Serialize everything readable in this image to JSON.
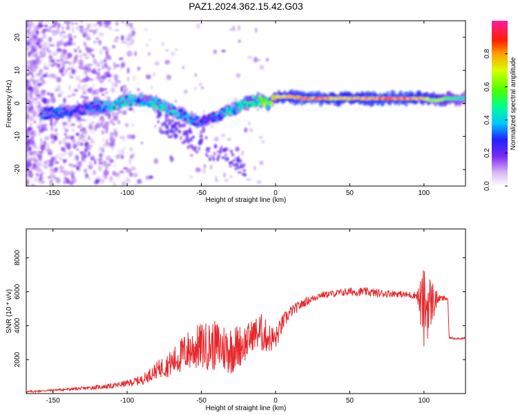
{
  "title": "PAZ1.2024.362.15.42.G03",
  "chart_data": [
    {
      "type": "heatmap",
      "xlabel": "Height of straight line (km)",
      "ylabel": "Frequency (Hz)",
      "xlim": [
        -168,
        128
      ],
      "ylim": [
        -25,
        25
      ],
      "xticks": [
        -150,
        -100,
        -50,
        0,
        50,
        100
      ],
      "yticks": [
        -20,
        -10,
        0,
        10,
        20
      ],
      "colorbar": {
        "label": "Normalized spectral amplitude",
        "range": [
          0,
          1
        ],
        "ticks": [
          "0.0",
          "0.2",
          "0.4",
          "0.6",
          "0.8"
        ],
        "colormap": "gist_ncar_r (white-purple-blue-cyan-green-yellow-red-magenta)"
      },
      "ridge": {
        "description": "main spectral ridge frequency vs height",
        "x": [
          -155,
          -130,
          -120,
          -110,
          -100,
          -90,
          -80,
          -70,
          -60,
          -50,
          -45,
          -40,
          -35,
          -30,
          -25,
          -20,
          -15,
          -10,
          -5,
          0,
          10,
          20,
          30,
          40,
          50,
          60,
          70,
          80,
          90,
          100,
          105,
          110,
          115,
          120,
          125
        ],
        "y": [
          -3,
          -2,
          -1,
          -1,
          1,
          1,
          0,
          -2,
          -4,
          -6,
          -5,
          -4,
          -3,
          -2,
          -1,
          0,
          1,
          1,
          0,
          2,
          2,
          1.5,
          1.5,
          1.5,
          1.5,
          1.5,
          1.5,
          1.5,
          1.5,
          1.5,
          1,
          1,
          1.5,
          1.5,
          1.5
        ],
        "amplitude": [
          0.35,
          0.3,
          0.35,
          0.45,
          0.45,
          0.4,
          0.5,
          0.45,
          0.4,
          0.35,
          0.3,
          0.35,
          0.4,
          0.45,
          0.45,
          0.5,
          0.55,
          0.6,
          0.7,
          0.75,
          0.8,
          0.85,
          0.85,
          0.8,
          0.8,
          0.8,
          0.85,
          0.85,
          0.85,
          0.8,
          0.7,
          0.7,
          0.6,
          0.5,
          0.45
        ]
      }
    },
    {
      "type": "line",
      "xlabel": "Height of straight line (km)",
      "ylabel": "SNR (10 * v/v)",
      "xlim": [
        -168,
        128
      ],
      "ylim": [
        0,
        9700
      ],
      "xticks": [
        -150,
        -100,
        -50,
        0,
        50,
        100
      ],
      "yticks": [
        2000,
        4000,
        6000,
        8000
      ],
      "series": [
        {
          "color": "#e8262a",
          "x": [
            -168,
            -150,
            -130,
            -110,
            -100,
            -90,
            -80,
            -70,
            -60,
            -50,
            -40,
            -30,
            -20,
            -15,
            -10,
            -5,
            0,
            5,
            10,
            20,
            30,
            40,
            50,
            60,
            70,
            80,
            90,
            95,
            100,
            105,
            110,
            115,
            116,
            117,
            120,
            128
          ],
          "y": [
            100,
            200,
            300,
            450,
            600,
            800,
            1400,
            1800,
            2500,
            2800,
            2800,
            2600,
            3000,
            3500,
            3600,
            3300,
            3200,
            4200,
            4800,
            5400,
            5800,
            5900,
            6000,
            6000,
            5900,
            5900,
            5800,
            5800,
            5000,
            5400,
            5600,
            5600,
            5600,
            3300,
            3250,
            3250
          ],
          "noise_amp": [
            60,
            60,
            100,
            150,
            200,
            300,
            500,
            800,
            1200,
            1400,
            1500,
            1500,
            1100,
            900,
            1200,
            900,
            700,
            500,
            350,
            250,
            200,
            200,
            250,
            250,
            250,
            200,
            200,
            250,
            2500,
            1500,
            200,
            150,
            100,
            60,
            60,
            60
          ]
        }
      ]
    }
  ]
}
